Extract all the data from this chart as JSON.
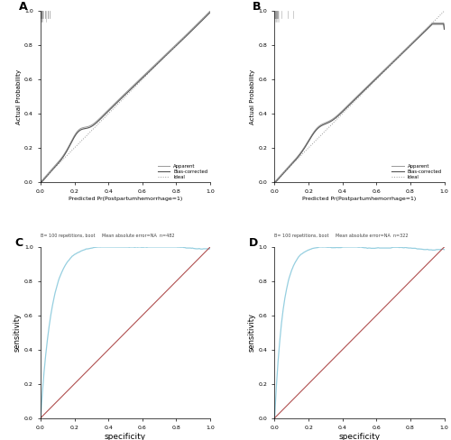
{
  "fig_width": 5.0,
  "fig_height": 4.88,
  "dpi": 100,
  "background_color": "#ffffff",
  "panel_labels": [
    "A",
    "B",
    "C",
    "D"
  ],
  "calib_xlabel": "Predicted Pr(Postpartumhemorrhage=1)",
  "calib_ylabel": "Actual Probability",
  "calib_footnote_A": "B= 100 repetitions, boot     Mean absolute error=NA  n=482",
  "calib_footnote_B": "B= 100 repetitions, boot     Mean absolute error=NA  n=322",
  "calib_legend": [
    "Apparent",
    "Bias-corrected",
    "Ideal"
  ],
  "calib_apparent_color": "#999999",
  "calib_bias_color": "#555555",
  "calib_ideal_color": "#999999",
  "roc_xlabel": "specificity",
  "roc_ylabel": "sensitivity",
  "roc_line_color": "#96cfe0",
  "roc_diag_color": "#b05050",
  "spike_color": "#999999"
}
